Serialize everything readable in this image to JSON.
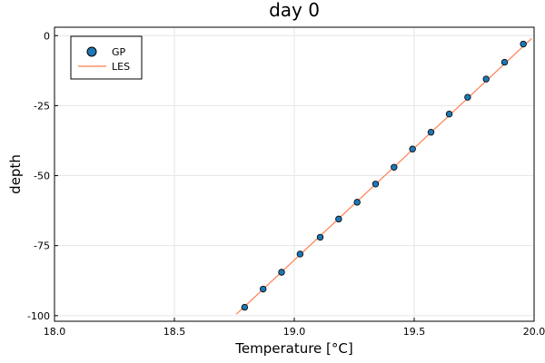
{
  "chart_data": {
    "type": "scatter",
    "title": "day 0",
    "xlabel": "Temperature [°C]",
    "ylabel": "depth",
    "xlim": [
      18.0,
      20.0
    ],
    "ylim": [
      -102,
      3
    ],
    "xticks": [
      18.0,
      18.5,
      19.0,
      19.5,
      20.0
    ],
    "xtick_labels": [
      "18.0",
      "18.5",
      "19.0",
      "19.5",
      "20.0"
    ],
    "yticks": [
      0,
      -25,
      -50,
      -75,
      -100
    ],
    "ytick_labels": [
      "0",
      "-25",
      "-50",
      "-75",
      "-100"
    ],
    "grid": true,
    "legend_position": "top-left",
    "series": [
      {
        "name": "GP",
        "kind": "scatter",
        "color": "#1f77b4",
        "x": [
          19.955,
          19.877,
          19.8,
          19.723,
          19.646,
          19.57,
          19.493,
          19.416,
          19.339,
          19.262,
          19.185,
          19.108,
          19.024,
          18.947,
          18.87,
          18.793
        ],
        "y": [
          -3,
          -9.5,
          -15.5,
          -22,
          -28,
          -34.5,
          -40.5,
          -47,
          -53,
          -59.5,
          -65.5,
          -72,
          -78,
          -84.5,
          -90.5,
          -97
        ]
      },
      {
        "name": "LES",
        "kind": "line",
        "color": "#ff7f50",
        "x": [
          18.758,
          19.99
        ],
        "y": [
          -99.5,
          -1
        ]
      }
    ]
  }
}
